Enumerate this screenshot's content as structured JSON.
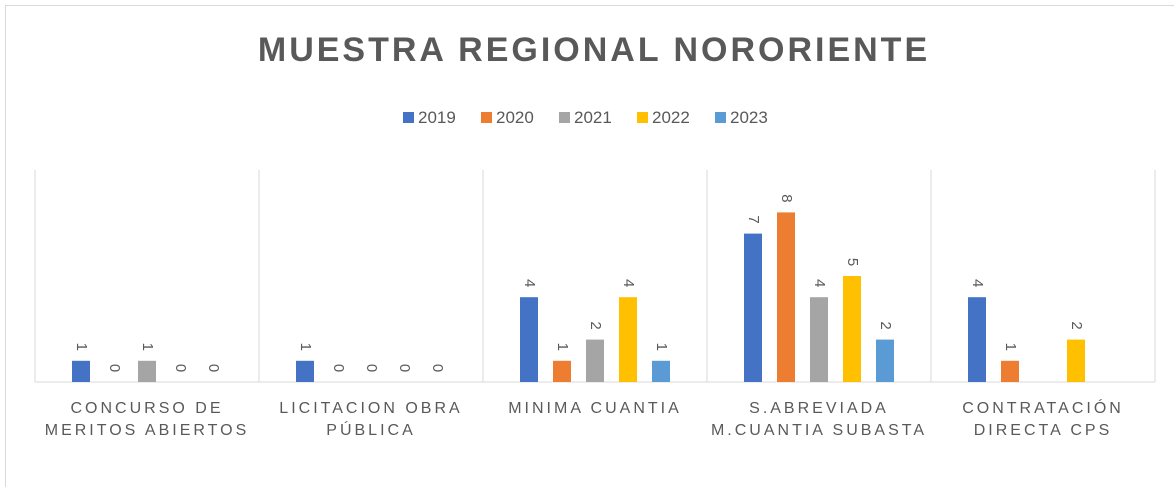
{
  "chart_data": {
    "type": "bar",
    "title": "MUESTRA REGIONAL NORORIENTE",
    "categories": [
      "CONCURSO DE MERITOS ABIERTOS",
      "LICITACION OBRA PÚBLICA",
      "MINIMA CUANTIA",
      "S.ABREVIADA M.CUANTIA SUBASTA",
      "CONTRATACIÓN DIRECTA CPS"
    ],
    "series": [
      {
        "name": "2019",
        "color": "#4472c4",
        "values": [
          1,
          1,
          4,
          7,
          4
        ]
      },
      {
        "name": "2020",
        "color": "#ed7d31",
        "values": [
          0,
          0,
          1,
          8,
          1
        ]
      },
      {
        "name": "2021",
        "color": "#a5a5a5",
        "values": [
          1,
          0,
          2,
          4,
          null
        ]
      },
      {
        "name": "2022",
        "color": "#ffc000",
        "values": [
          0,
          0,
          4,
          5,
          2
        ]
      },
      {
        "name": "2023",
        "color": "#5b9bd5",
        "values": [
          0,
          0,
          1,
          2,
          null
        ]
      }
    ],
    "ylim": [
      0,
      10
    ],
    "legend": "top"
  }
}
